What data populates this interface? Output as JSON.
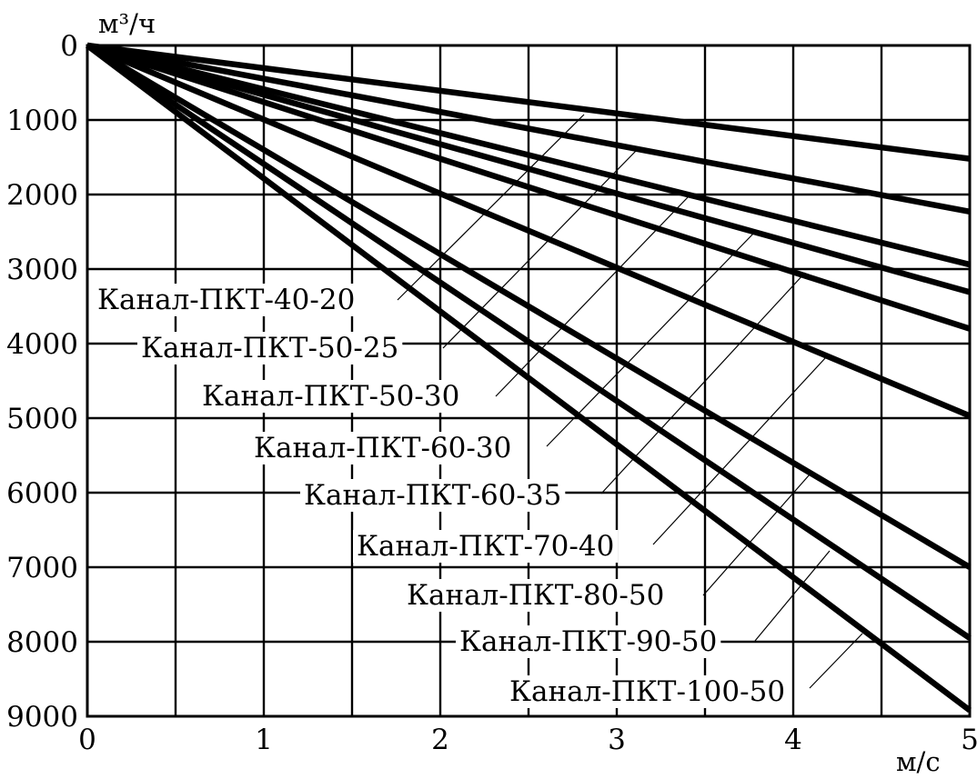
{
  "chart_data": {
    "type": "line",
    "title": "",
    "ylabel": "м³/ч",
    "xlabel": "м/с",
    "x_ticks": [
      "0",
      "1",
      "2",
      "3",
      "4",
      "5"
    ],
    "y_ticks": [
      "0",
      "1000",
      "2000",
      "3000",
      "4000",
      "5000",
      "6000",
      "7000",
      "8000",
      "9000"
    ],
    "xlim": [
      0,
      5
    ],
    "ylim": [
      0,
      9000
    ],
    "y_axis_inverted": true,
    "grid": true,
    "x": [
      0,
      5
    ],
    "series": [
      {
        "name": "Канал-ПКТ-40-20",
        "values": [
          0,
          1520
        ]
      },
      {
        "name": "Канал-ПКТ-50-25",
        "values": [
          0,
          2230
        ]
      },
      {
        "name": "Канал-ПКТ-50-30",
        "values": [
          0,
          2940
        ]
      },
      {
        "name": "Канал-ПКТ-60-30",
        "values": [
          0,
          3310
        ]
      },
      {
        "name": "Канал-ПКТ-60-35",
        "values": [
          0,
          3800
        ]
      },
      {
        "name": "Канал-ПКТ-70-40",
        "values": [
          0,
          4970
        ]
      },
      {
        "name": "Канал-ПКТ-80-50",
        "values": [
          0,
          7000
        ]
      },
      {
        "name": "Канал-ПКТ-90-50",
        "values": [
          0,
          7950
        ]
      },
      {
        "name": "Канал-ПКТ-100-50",
        "values": [
          0,
          8920
        ]
      }
    ]
  }
}
